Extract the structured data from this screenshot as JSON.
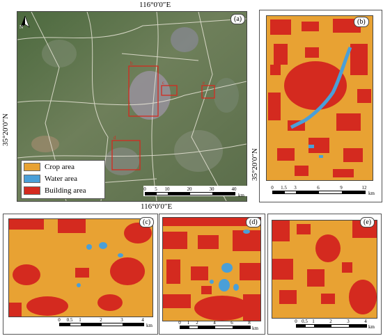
{
  "coords": {
    "lon_top": "116°0′0″E",
    "lon_bottom": "116°0′0″E",
    "lat_a": "35°20′0″N",
    "lat_b": "35°20′0″N"
  },
  "north_arrow": {
    "letter": "N"
  },
  "panels": {
    "a": {
      "label": "(a)"
    },
    "b": {
      "label": "(b)"
    },
    "c": {
      "label": "(c)"
    },
    "d": {
      "label": "(d)"
    },
    "e": {
      "label": "(e)"
    }
  },
  "legend": [
    {
      "label": "Crop area",
      "color": "#e8a233"
    },
    {
      "label": "Water area",
      "color": "#4a9fd8"
    },
    {
      "label": "Building area",
      "color": "#d42a1f"
    }
  ],
  "scalebars": {
    "a": {
      "ticks": [
        "0",
        "5",
        "10",
        "20",
        "30",
        "40"
      ],
      "unit": "km"
    },
    "b": {
      "ticks": [
        "0",
        "1.5",
        "3",
        "6",
        "9",
        "12"
      ],
      "unit": "km"
    },
    "c": {
      "ticks": [
        "0",
        "0.5",
        "1",
        "2",
        "3",
        "4"
      ],
      "unit": "km"
    },
    "d": {
      "ticks": [
        "0",
        "1",
        "2",
        "4",
        "6",
        "8"
      ],
      "unit": "km"
    },
    "e": {
      "ticks": [
        "0",
        "0.5",
        "1",
        "2",
        "3",
        "4"
      ],
      "unit": "km"
    }
  },
  "colors": {
    "crop": "#e8a233",
    "water": "#4a9fd8",
    "building": "#d42a1f",
    "satellite": "#5f7a4f",
    "outline": "#d42a1f"
  }
}
